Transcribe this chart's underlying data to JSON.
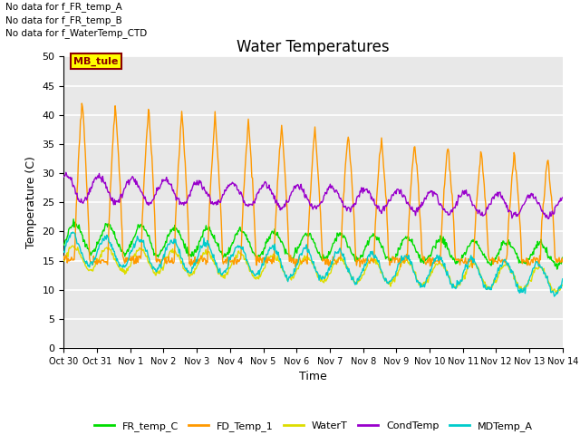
{
  "title": "Water Temperatures",
  "xlabel": "Time",
  "ylabel": "Temperature (C)",
  "ylim": [
    0,
    50
  ],
  "yticks": [
    0,
    5,
    10,
    15,
    20,
    25,
    30,
    35,
    40,
    45,
    50
  ],
  "x_labels": [
    "Oct 30",
    "Oct 31",
    "Nov 1",
    "Nov 2",
    "Nov 3",
    "Nov 4",
    "Nov 5",
    "Nov 6",
    "Nov 7",
    "Nov 8",
    "Nov 9",
    "Nov 10",
    "Nov 11",
    "Nov 12",
    "Nov 13",
    "Nov 14"
  ],
  "annotations": [
    "No data for f_FR_temp_A",
    "No data for f_FR_temp_B",
    "No data for f_WaterTemp_CTD"
  ],
  "mb_tule_label": "MB_tule",
  "colors": {
    "FR_temp_C": "#00dd00",
    "FD_Temp_1": "#ff9900",
    "WaterT": "#dddd00",
    "CondTemp": "#9900cc",
    "MDTemp_A": "#00cccc"
  },
  "plot_bg_color": "#e8e8e8",
  "grid_color": "#ffffff",
  "legend_entries": [
    "FR_temp_C",
    "FD_Temp_1",
    "WaterT",
    "CondTemp",
    "MDTemp_A"
  ]
}
